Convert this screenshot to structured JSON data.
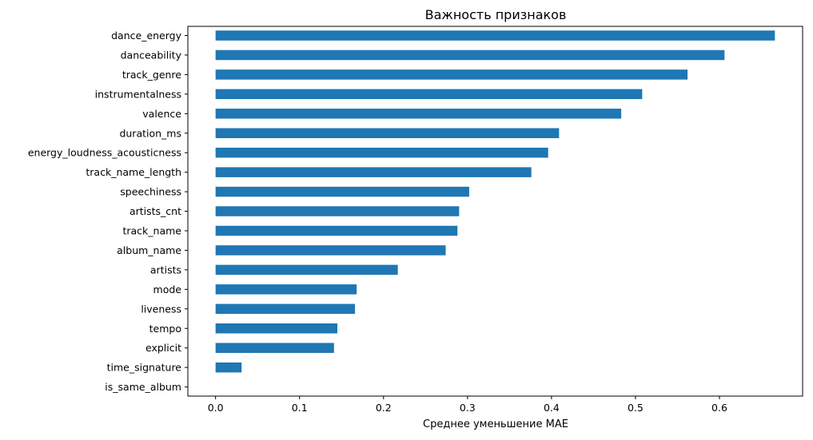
{
  "chart_data": {
    "type": "bar",
    "orientation": "horizontal",
    "title": "Важность признаков",
    "xlabel": "Среднее уменьшение MAE",
    "ylabel": "",
    "xlim": [
      -0.033,
      0.699
    ],
    "xticks": [
      0.0,
      0.1,
      0.2,
      0.3,
      0.4,
      0.5,
      0.6
    ],
    "xtick_labels": [
      "0.0",
      "0.1",
      "0.2",
      "0.3",
      "0.4",
      "0.5",
      "0.6"
    ],
    "grid": false,
    "legend": "none",
    "bar_color": "#1f77b4",
    "categories": [
      "dance_energy",
      "danceability",
      "track_genre",
      "instrumentalness",
      "valence",
      "duration_ms",
      "energy_loudness_acousticness",
      "track_name_length",
      "speechiness",
      "artists_cnt",
      "track_name",
      "album_name",
      "artists",
      "mode",
      "liveness",
      "tempo",
      "explicit",
      "time_signature",
      "is_same_album"
    ],
    "values": [
      0.666,
      0.606,
      0.562,
      0.508,
      0.483,
      0.409,
      0.396,
      0.376,
      0.302,
      0.29,
      0.288,
      0.274,
      0.217,
      0.168,
      0.166,
      0.145,
      0.141,
      0.031,
      0.0
    ]
  }
}
